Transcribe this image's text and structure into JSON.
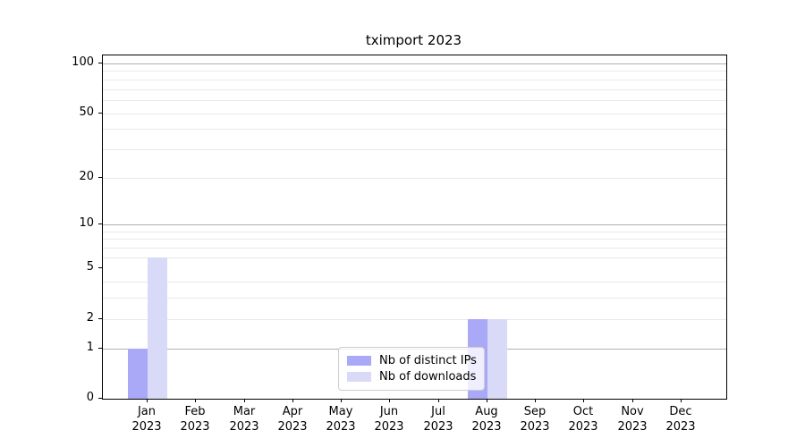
{
  "chart_data": {
    "type": "bar",
    "title": "tximport 2023",
    "categories": [
      "Jan",
      "Feb",
      "Mar",
      "Apr",
      "May",
      "Jun",
      "Jul",
      "Aug",
      "Sep",
      "Oct",
      "Nov",
      "Dec"
    ],
    "year": "2023",
    "series": [
      {
        "name": "Nb of distinct IPs",
        "color": "#a9a9f7",
        "values": [
          1,
          0,
          0,
          0,
          0,
          0,
          0,
          2,
          0,
          0,
          0,
          0
        ]
      },
      {
        "name": "Nb of downloads",
        "color": "#d9d9f8",
        "values": [
          6,
          0,
          0,
          0,
          0,
          0,
          0,
          2,
          0,
          0,
          0,
          0
        ]
      }
    ],
    "xlabel": "",
    "ylabel": "",
    "ylim": [
      0,
      100
    ],
    "y_scale": "log1p",
    "y_ticks": [
      0,
      1,
      2,
      5,
      10,
      20,
      50,
      100
    ],
    "grid_major": [
      1,
      10,
      100
    ],
    "grid_minor": [
      2,
      3,
      4,
      6,
      7,
      8,
      9,
      20,
      30,
      40,
      50,
      60,
      70,
      80,
      90
    ],
    "legend_position": "lower center",
    "colors": {
      "frame": "#000000",
      "grid_major": "#b0b0b0",
      "grid_minor": "#e9e9e9",
      "legend_border": "#cccccc",
      "text": "#000000"
    }
  }
}
